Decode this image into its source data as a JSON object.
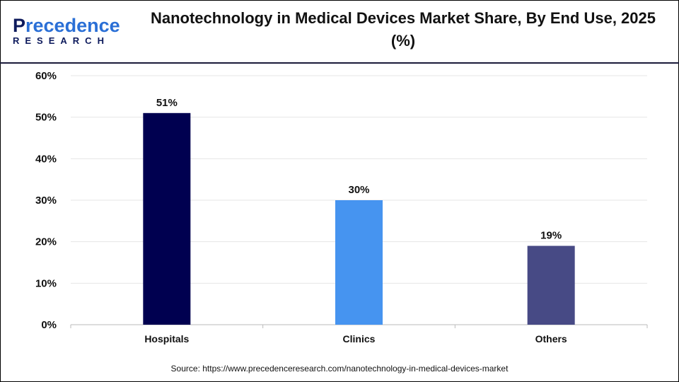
{
  "logo": {
    "line1_start": "P",
    "line1_mid": "reced",
    "line1_end": "ence",
    "line2": "RESEARCH"
  },
  "source": "Source: https://www.precedenceresearch.com/nanotechnology-in-medical-devices-market",
  "chart_data": {
    "type": "bar",
    "title": "Nanotechnology in Medical Devices Market Share, By End Use, 2025 (%)",
    "categories": [
      "Hospitals",
      "Clinics",
      "Others"
    ],
    "values": [
      51,
      30,
      19
    ],
    "data_labels": [
      "51%",
      "30%",
      "19%"
    ],
    "colors": [
      "#000050",
      "#4694F0",
      "#474A85"
    ],
    "ylim": [
      0,
      60
    ],
    "yticks": [
      "0%",
      "10%",
      "20%",
      "30%",
      "40%",
      "50%",
      "60%"
    ],
    "xlabel": "",
    "ylabel": "",
    "grid": true,
    "legend": "none"
  }
}
